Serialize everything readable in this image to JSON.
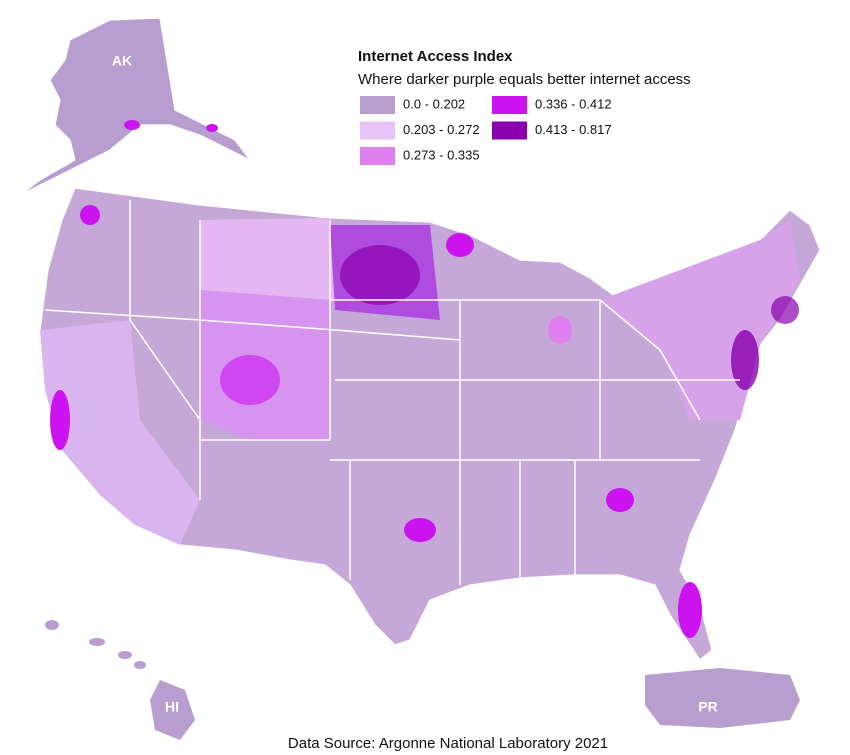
{
  "title": "Internet Access Index",
  "subtitle": "Where darker purple equals better internet access",
  "legend": [
    {
      "label": "0.0 - 0.202",
      "color": "#b89dcf"
    },
    {
      "label": "0.203 - 0.272",
      "color": "#e8c3f5"
    },
    {
      "label": "0.273 - 0.335",
      "color": "#e07ff0"
    },
    {
      "label": "0.336 - 0.412",
      "color": "#cc12ef"
    },
    {
      "label": "0.413 - 0.817",
      "color": "#8a00ae"
    }
  ],
  "regions": {
    "alaska": "AK",
    "hawaii": "HI",
    "puerto_rico": "PR"
  },
  "source": "Data Source: Argonne National Laboratory 2021"
}
